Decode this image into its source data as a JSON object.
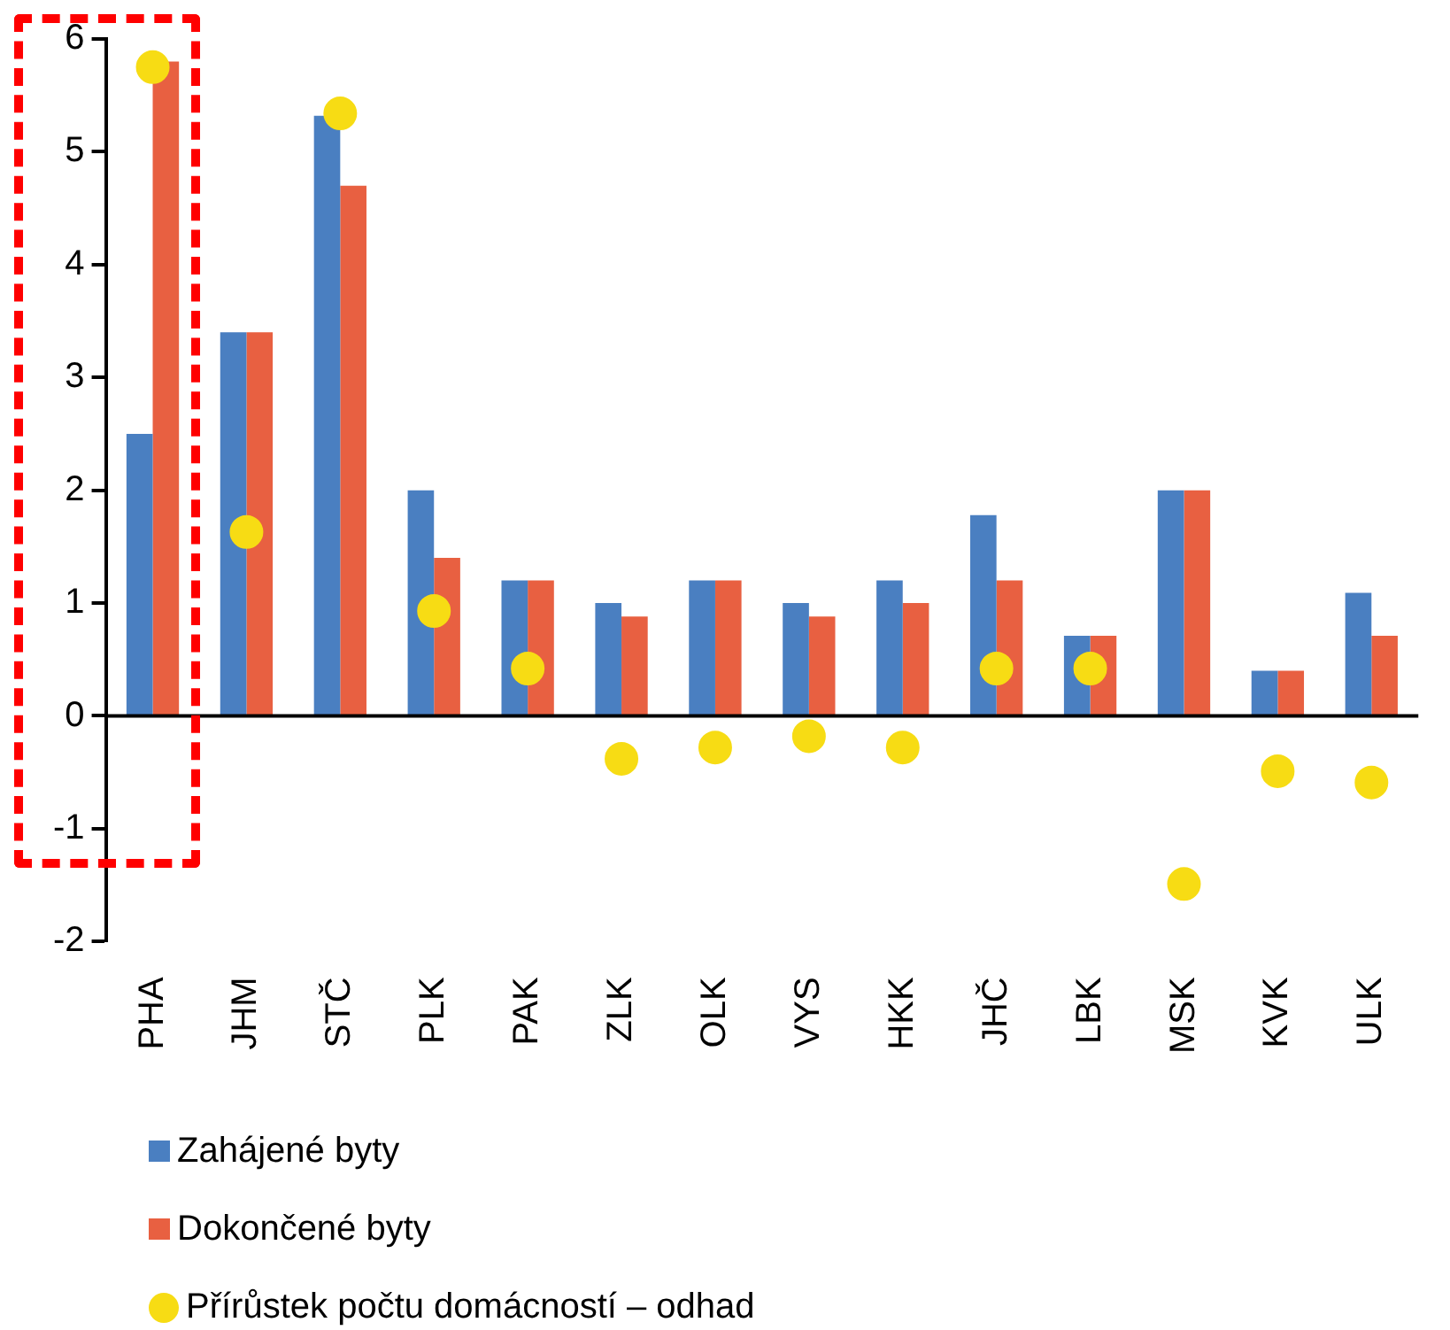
{
  "chart_data": {
    "type": "bar",
    "categories": [
      "PHA",
      "JHM",
      "STČ",
      "PLK",
      "PAK",
      "ZLK",
      "OLK",
      "VYS",
      "HKK",
      "JHČ",
      "LBK",
      "MSK",
      "KVK",
      "ULK"
    ],
    "series": [
      {
        "name": "Zahájené byty",
        "color": "#4a7fc1",
        "values": [
          2.5,
          3.4,
          5.32,
          2.0,
          1.2,
          1.0,
          1.2,
          1.0,
          1.2,
          1.78,
          0.71,
          2.0,
          0.4,
          1.09
        ]
      },
      {
        "name": "Dokončené byty",
        "color": "#e86041",
        "values": [
          5.8,
          3.4,
          4.7,
          1.4,
          1.2,
          0.88,
          1.2,
          0.88,
          1.0,
          1.2,
          0.71,
          2.0,
          0.4,
          0.71
        ]
      },
      {
        "name": "Přírůstek počtu domácností – odhad",
        "color": "#f7dc14",
        "type": "scatter",
        "marker": "circle",
        "x": [
          "PHA",
          "JHM",
          "STČ",
          "PLK",
          "PAK",
          "ZLK",
          "OLK",
          "VYS",
          "HKK",
          "JHČ",
          "LBK",
          "MSK",
          "KVK",
          "ULK"
        ],
        "values": [
          5.75,
          1.63,
          5.34,
          0.93,
          0.42,
          -0.38,
          -0.28,
          -0.18,
          -0.28,
          0.42,
          0.42,
          -1.49,
          -0.49,
          -0.59
        ]
      }
    ],
    "ylim": [
      -2,
      6
    ],
    "yticks": [
      -2,
      -1,
      0,
      1,
      2,
      3,
      4,
      5,
      6
    ],
    "legend": "bottom"
  }
}
